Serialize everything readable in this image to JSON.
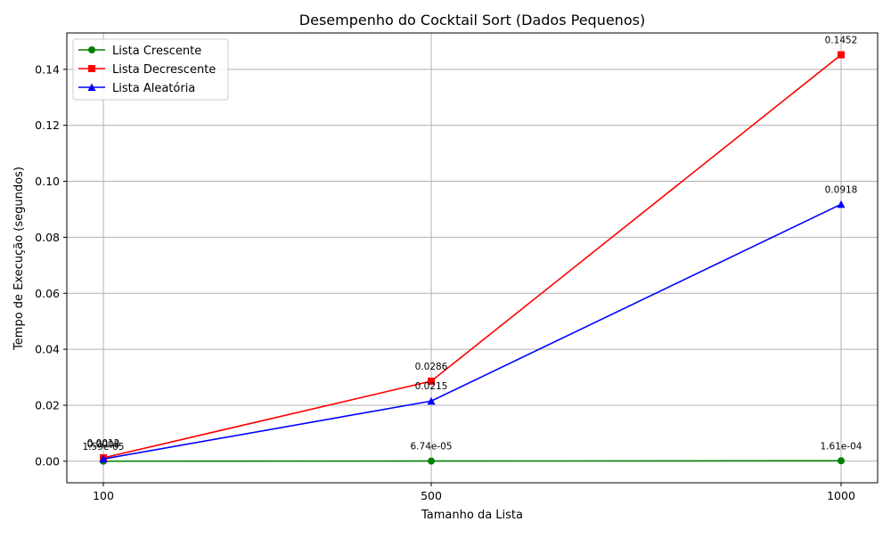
{
  "chart_data": {
    "type": "line",
    "title": "Desempenho do Cocktail Sort (Dados Pequenos)",
    "xlabel": "Tamanho da Lista",
    "ylabel": "Tempo de Execução (segundos)",
    "x": [
      100,
      500,
      1000
    ],
    "x_tick_labels": [
      "100",
      "500",
      "1000"
    ],
    "ylim": [
      -0.0077,
      0.153
    ],
    "y_ticks": [
      0.0,
      0.02,
      0.04,
      0.06,
      0.08,
      0.1,
      0.12,
      0.14
    ],
    "y_tick_labels": [
      "0.00",
      "0.02",
      "0.04",
      "0.06",
      "0.08",
      "0.10",
      "0.12",
      "0.14"
    ],
    "grid": true,
    "legend_position": "top-left",
    "series": [
      {
        "name": "Lista Crescente",
        "color": "#008000",
        "marker": "circle",
        "values": [
          1.59e-05,
          6.74e-05,
          0.000161
        ],
        "data_labels": [
          "1.59e-05",
          "6.74e-05",
          "1.61e-04"
        ]
      },
      {
        "name": "Lista Decrescente",
        "color": "#ff0000",
        "marker": "square",
        "values": [
          0.0012,
          0.0286,
          0.1452
        ],
        "data_labels": [
          "0.0012",
          "0.0286",
          "0.1452"
        ]
      },
      {
        "name": "Lista Aleatória",
        "color": "#0000ff",
        "marker": "triangle",
        "values": [
          0.0008,
          0.0215,
          0.0918
        ],
        "data_labels": [
          "0.0008",
          "0.0215",
          "0.0918"
        ]
      }
    ]
  }
}
